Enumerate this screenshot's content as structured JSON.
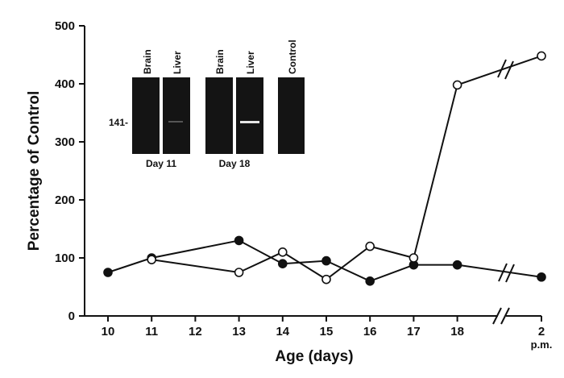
{
  "chart_data": {
    "type": "line",
    "xlabel": "Age (days)",
    "ylabel": "Percentage of Control",
    "ylim": [
      0,
      500
    ],
    "yticks": [
      "0",
      "100",
      "200",
      "300",
      "400",
      "500"
    ],
    "x_categories": [
      "10",
      "11",
      "12",
      "13",
      "14",
      "15",
      "16",
      "17",
      "18",
      "2 p.m."
    ],
    "x_tick_labels": [
      {
        "label": "10",
        "sub": ""
      },
      {
        "label": "11",
        "sub": ""
      },
      {
        "label": "12",
        "sub": ""
      },
      {
        "label": "13",
        "sub": ""
      },
      {
        "label": "14",
        "sub": ""
      },
      {
        "label": "15",
        "sub": ""
      },
      {
        "label": "16",
        "sub": ""
      },
      {
        "label": "17",
        "sub": ""
      },
      {
        "label": "18",
        "sub": ""
      },
      {
        "label": "2",
        "sub": "p.m."
      }
    ],
    "axis_break": "between 18 and 2 p.m.",
    "series": [
      {
        "marker": "filled-circle",
        "points": [
          {
            "x": "10",
            "y": 75
          },
          {
            "x": "11",
            "y": 100
          },
          {
            "x": "13",
            "y": 130
          },
          {
            "x": "14",
            "y": 90
          },
          {
            "x": "15",
            "y": 95
          },
          {
            "x": "16",
            "y": 60
          },
          {
            "x": "17",
            "y": 88
          },
          {
            "x": "18",
            "y": 88
          },
          {
            "x": "2 p.m.",
            "y": 67
          }
        ]
      },
      {
        "marker": "open-circle",
        "points": [
          {
            "x": "11",
            "y": 97
          },
          {
            "x": "13",
            "y": 75
          },
          {
            "x": "14",
            "y": 110
          },
          {
            "x": "15",
            "y": 63
          },
          {
            "x": "16",
            "y": 120
          },
          {
            "x": "17",
            "y": 100
          },
          {
            "x": "18",
            "y": 398
          },
          {
            "x": "2 p.m.",
            "y": 448
          }
        ]
      }
    ]
  },
  "inset": {
    "lanes": [
      "Brain",
      "Liver",
      "Brain",
      "Liver",
      "Control"
    ],
    "marker_label": "141-",
    "groups": [
      "Day 11",
      "Day 18"
    ]
  }
}
